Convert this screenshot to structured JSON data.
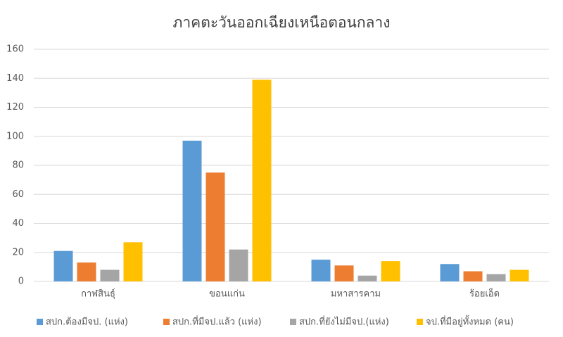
{
  "chart_data": {
    "type": "bar",
    "title": "ภาคตะวันออกเฉียงเหนือตอนกลาง",
    "categories": [
      "กาฬสินธุ์",
      "ขอนแก่น",
      "มหาสารคาม",
      "ร้อยเอ็ด"
    ],
    "series": [
      {
        "name": "สปก.ต้องมีจป.  (แห่ง)",
        "color": "#5b9bd5",
        "values": [
          21,
          97,
          15,
          12
        ]
      },
      {
        "name": "สปก.ที่มีจป.แล้ว (แห่ง)",
        "color": "#ed7d31",
        "values": [
          13,
          75,
          11,
          7
        ]
      },
      {
        "name": "สปก.ที่ยังไม่มีจป.(แห่ง)",
        "color": "#a5a5a5",
        "values": [
          8,
          22,
          4,
          5
        ]
      },
      {
        "name": "จป.ที่มีอยู่ทั้งหมด (คน)",
        "color": "#ffc000",
        "values": [
          27,
          139,
          14,
          8
        ]
      }
    ],
    "ylim": [
      0,
      160
    ],
    "yticks": [
      0,
      20,
      40,
      60,
      80,
      100,
      120,
      140,
      160
    ],
    "grid": true,
    "legend": "bottom"
  }
}
